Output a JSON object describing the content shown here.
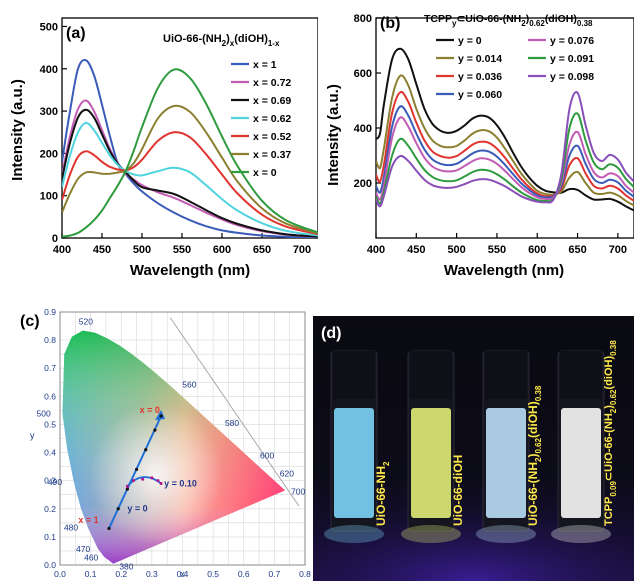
{
  "chart_data": [
    {
      "type": "line",
      "panel_label": "(a)",
      "title": "UiO-66-(NH",
      "title_sub1": "2",
      "title_mid": ")",
      "title_sub2": "x",
      "title_end": "(diOH)",
      "title_sub3": "1-x",
      "xlabel": "Wavelength (nm)",
      "ylabel": "Intensity (a.u.)",
      "xlim": [
        400,
        720
      ],
      "ylim": [
        0,
        520
      ],
      "xticks": [
        "400",
        "450",
        "500",
        "550",
        "600",
        "650",
        "700"
      ],
      "yticks": [
        "0",
        "100",
        "200",
        "300",
        "400",
        "500"
      ],
      "legend_position": "top-right",
      "series": [
        {
          "name": "x = 1",
          "color": "#3a5bb8",
          "x": [
            400,
            410,
            420,
            430,
            440,
            450,
            460,
            470,
            480,
            490,
            500,
            520,
            540,
            560,
            580,
            600,
            620,
            650,
            680,
            720
          ],
          "y": [
            180,
            300,
            400,
            420,
            385,
            315,
            240,
            175,
            150,
            128,
            110,
            82,
            60,
            42,
            28,
            18,
            12,
            6,
            3,
            1
          ]
        },
        {
          "name": "x = 0.72",
          "color": "#c25bb4",
          "x": [
            400,
            410,
            420,
            430,
            440,
            450,
            460,
            470,
            480,
            490,
            500,
            520,
            540,
            560,
            580,
            600,
            620,
            650,
            680,
            720
          ],
          "y": [
            150,
            240,
            305,
            325,
            300,
            255,
            210,
            175,
            152,
            138,
            125,
            108,
            95,
            78,
            60,
            44,
            30,
            16,
            8,
            3
          ]
        },
        {
          "name": "x = 0.69",
          "color": "#111111",
          "x": [
            400,
            410,
            420,
            430,
            440,
            450,
            460,
            470,
            480,
            490,
            500,
            520,
            540,
            560,
            580,
            600,
            620,
            650,
            680,
            720
          ],
          "y": [
            140,
            225,
            285,
            303,
            285,
            245,
            205,
            175,
            155,
            135,
            120,
            112,
            104,
            86,
            66,
            47,
            33,
            18,
            9,
            3
          ]
        },
        {
          "name": "x = 0.62",
          "color": "#4fd3df",
          "x": [
            400,
            410,
            420,
            430,
            440,
            450,
            460,
            470,
            480,
            490,
            500,
            520,
            540,
            560,
            580,
            600,
            620,
            650,
            680,
            720
          ],
          "y": [
            120,
            195,
            250,
            272,
            255,
            225,
            195,
            172,
            158,
            150,
            148,
            158,
            166,
            155,
            125,
            92,
            64,
            35,
            17,
            6
          ]
        },
        {
          "name": "x = 0.52",
          "color": "#e0342e",
          "x": [
            400,
            410,
            420,
            430,
            440,
            450,
            460,
            470,
            480,
            490,
            500,
            520,
            540,
            560,
            580,
            600,
            620,
            650,
            680,
            720
          ],
          "y": [
            90,
            150,
            192,
            205,
            196,
            180,
            168,
            162,
            160,
            168,
            185,
            230,
            250,
            238,
            198,
            150,
            104,
            55,
            27,
            9
          ]
        },
        {
          "name": "x = 0.37",
          "color": "#8b8030",
          "x": [
            400,
            410,
            420,
            430,
            440,
            450,
            460,
            470,
            480,
            490,
            500,
            520,
            540,
            560,
            580,
            600,
            620,
            650,
            680,
            720
          ],
          "y": [
            60,
            105,
            140,
            155,
            155,
            152,
            152,
            155,
            160,
            178,
            210,
            283,
            312,
            298,
            250,
            190,
            132,
            70,
            34,
            11
          ]
        },
        {
          "name": "x = 0",
          "color": "#2e9b3e",
          "x": [
            400,
            410,
            420,
            430,
            440,
            450,
            460,
            470,
            480,
            490,
            500,
            520,
            540,
            560,
            580,
            600,
            620,
            650,
            680,
            720
          ],
          "y": [
            3,
            6,
            12,
            25,
            42,
            65,
            95,
            125,
            160,
            208,
            262,
            355,
            398,
            378,
            318,
            240,
            168,
            88,
            42,
            13
          ]
        }
      ]
    },
    {
      "type": "line",
      "panel_label": "(b)",
      "title": "TCPP",
      "title_sub1": "y",
      "title_mid": "⊂UiO-66-(NH",
      "title_sub2": "2",
      "title_end": ")",
      "title_sub3": "0.62",
      "title_end2": "(diOH)",
      "title_sub4": "0.38",
      "xlabel": "Wavelength (nm)",
      "ylabel": "Intensity (a.u.)",
      "xlim": [
        400,
        720
      ],
      "ylim": [
        0,
        800
      ],
      "xticks": [
        "400",
        "450",
        "500",
        "550",
        "600",
        "650",
        "700"
      ],
      "yticks": [
        "200",
        "400",
        "600",
        "800"
      ],
      "legend_position": "top",
      "series": [
        {
          "name": "y = 0",
          "color": "#111111",
          "x": [
            400,
            405,
            410,
            420,
            430,
            440,
            450,
            460,
            470,
            480,
            490,
            500,
            510,
            520,
            530,
            540,
            550,
            560,
            570,
            580,
            590,
            600,
            610,
            620,
            630,
            640,
            650,
            660,
            670,
            680,
            690,
            700,
            710,
            720
          ],
          "y": [
            360,
            380,
            490,
            650,
            688,
            650,
            560,
            470,
            415,
            390,
            382,
            390,
            410,
            435,
            445,
            438,
            410,
            365,
            310,
            260,
            220,
            190,
            172,
            166,
            165,
            178,
            175,
            155,
            140,
            140,
            142,
            132,
            115,
            100
          ]
        },
        {
          "name": "y = 0.014",
          "color": "#8b8030",
          "x": [
            400,
            405,
            410,
            420,
            430,
            440,
            450,
            460,
            470,
            480,
            490,
            500,
            510,
            520,
            530,
            540,
            550,
            560,
            570,
            580,
            590,
            600,
            610,
            620,
            630,
            640,
            650,
            660,
            670,
            680,
            690,
            700,
            710,
            720
          ],
          "y": [
            280,
            255,
            330,
            510,
            590,
            555,
            470,
            400,
            355,
            335,
            330,
            335,
            355,
            380,
            392,
            388,
            365,
            325,
            280,
            235,
            200,
            172,
            160,
            158,
            170,
            220,
            240,
            200,
            165,
            160,
            165,
            155,
            135,
            118
          ]
        },
        {
          "name": "y = 0.036",
          "color": "#e0342e",
          "x": [
            400,
            405,
            410,
            420,
            430,
            440,
            450,
            460,
            470,
            480,
            490,
            500,
            510,
            520,
            530,
            540,
            550,
            560,
            570,
            580,
            590,
            600,
            610,
            620,
            630,
            640,
            650,
            660,
            670,
            680,
            690,
            700,
            710,
            720
          ],
          "y": [
            230,
            205,
            270,
            455,
            530,
            495,
            420,
            355,
            315,
            298,
            292,
            298,
            318,
            340,
            350,
            346,
            325,
            292,
            252,
            215,
            185,
            162,
            152,
            155,
            180,
            265,
            290,
            235,
            190,
            180,
            190,
            180,
            155,
            135
          ]
        },
        {
          "name": "y = 0.060",
          "color": "#3a5bb8",
          "x": [
            400,
            405,
            410,
            420,
            430,
            440,
            450,
            460,
            470,
            480,
            490,
            500,
            510,
            520,
            530,
            540,
            550,
            560,
            570,
            580,
            590,
            600,
            610,
            620,
            630,
            640,
            650,
            660,
            670,
            680,
            690,
            700,
            710,
            720
          ],
          "y": [
            190,
            165,
            225,
            405,
            478,
            445,
            380,
            322,
            286,
            270,
            265,
            270,
            288,
            308,
            318,
            314,
            296,
            266,
            232,
            200,
            175,
            155,
            148,
            152,
            190,
            300,
            335,
            270,
            215,
            200,
            212,
            202,
            172,
            150
          ]
        },
        {
          "name": "y = 0.076",
          "color": "#c25bb4",
          "x": [
            400,
            405,
            410,
            420,
            430,
            440,
            450,
            460,
            470,
            480,
            490,
            500,
            510,
            520,
            530,
            540,
            550,
            560,
            570,
            580,
            590,
            600,
            610,
            620,
            630,
            640,
            650,
            660,
            670,
            680,
            690,
            700,
            710,
            720
          ],
          "y": [
            165,
            140,
            195,
            365,
            438,
            405,
            345,
            292,
            260,
            246,
            242,
            246,
            262,
            280,
            290,
            286,
            270,
            244,
            214,
            186,
            164,
            148,
            142,
            148,
            200,
            340,
            385,
            305,
            240,
            220,
            235,
            225,
            190,
            165
          ]
        },
        {
          "name": "y = 0.091",
          "color": "#2e9b3e",
          "x": [
            400,
            405,
            410,
            420,
            430,
            440,
            450,
            460,
            470,
            480,
            490,
            500,
            510,
            520,
            530,
            540,
            550,
            560,
            570,
            580,
            590,
            600,
            610,
            620,
            630,
            640,
            650,
            660,
            670,
            680,
            690,
            700,
            710,
            720
          ],
          "y": [
            150,
            125,
            170,
            300,
            360,
            335,
            290,
            248,
            222,
            210,
            206,
            210,
            224,
            240,
            248,
            245,
            232,
            212,
            188,
            166,
            150,
            138,
            135,
            142,
            215,
            400,
            452,
            355,
            275,
            250,
            268,
            255,
            215,
            185
          ]
        },
        {
          "name": "y = 0.098",
          "color": "#8a4fb8",
          "x": [
            400,
            405,
            410,
            420,
            430,
            440,
            450,
            460,
            470,
            480,
            490,
            500,
            510,
            520,
            530,
            540,
            550,
            560,
            570,
            580,
            590,
            600,
            610,
            620,
            630,
            640,
            650,
            660,
            670,
            680,
            690,
            700,
            710,
            720
          ],
          "y": [
            140,
            115,
            155,
            260,
            298,
            280,
            245,
            212,
            192,
            184,
            182,
            186,
            196,
            208,
            214,
            212,
            202,
            188,
            170,
            152,
            140,
            132,
            130,
            140,
            235,
            470,
            528,
            410,
            310,
            280,
            302,
            285,
            238,
            205
          ]
        }
      ]
    },
    {
      "type": "scatter",
      "panel_label": "(c)",
      "xlabel": "x",
      "ylabel": "y",
      "xlim": [
        0.0,
        0.8
      ],
      "ylim": [
        0.0,
        0.9
      ],
      "xticks": [
        "0.0",
        "0.1",
        "0.2",
        "0.3",
        "0.4",
        "0.5",
        "0.6",
        "0.7",
        "0.8"
      ],
      "yticks": [
        "0.0",
        "0.1",
        "0.2",
        "0.3",
        "0.4",
        "0.5",
        "0.6",
        "0.7",
        "0.8",
        "0.9"
      ],
      "grid": true,
      "locus_labels": [
        {
          "text": "380",
          "x": 0.1741,
          "y": 0.005
        },
        {
          "text": "460",
          "x": 0.144,
          "y": 0.0297
        },
        {
          "text": "470",
          "x": 0.1241,
          "y": 0.0578
        },
        {
          "text": "480",
          "x": 0.0913,
          "y": 0.1327
        },
        {
          "text": "490",
          "x": 0.0454,
          "y": 0.295
        },
        {
          "text": "500",
          "x": 0.0082,
          "y": 0.5384
        },
        {
          "text": "520",
          "x": 0.0743,
          "y": 0.8338
        },
        {
          "text": "560",
          "x": 0.3731,
          "y": 0.6245
        },
        {
          "text": "580",
          "x": 0.5125,
          "y": 0.4866
        },
        {
          "text": "600",
          "x": 0.627,
          "y": 0.3725
        },
        {
          "text": "620",
          "x": 0.6915,
          "y": 0.3083
        },
        {
          "text": "700",
          "x": 0.7347,
          "y": 0.2653
        }
      ],
      "points_x_series": {
        "name": "x",
        "x": [
          0.16,
          0.19,
          0.22,
          0.25,
          0.28,
          0.31,
          0.33
        ],
        "y": [
          0.13,
          0.2,
          0.27,
          0.34,
          0.41,
          0.48,
          0.53
        ]
      },
      "points_y_series": {
        "name": "y",
        "x": [
          0.22,
          0.24,
          0.27,
          0.3,
          0.32,
          0.33
        ],
        "y": [
          0.28,
          0.3,
          0.305,
          0.31,
          0.3,
          0.29
        ]
      },
      "annotations": [
        {
          "text": "x = 1",
          "x": 0.06,
          "y": 0.15,
          "color": "#e0342e"
        },
        {
          "text": "x = 0",
          "x": 0.26,
          "y": 0.54,
          "color": "#e0342e"
        },
        {
          "text": "y = 0.10",
          "x": 0.34,
          "y": 0.28,
          "color": "#1e3a8a"
        },
        {
          "text": "y = 0",
          "x": 0.22,
          "y": 0.19,
          "color": "#1e3a8a"
        }
      ]
    }
  ],
  "photo": {
    "panel_label": "(d)",
    "vials": [
      {
        "label": "UiO-66-NH",
        "sub1": "2",
        "rest": "",
        "glow": "#7fd9ff"
      },
      {
        "label": "UiO-66-diOH",
        "sub1": "",
        "rest": "",
        "glow": "#e6f27a"
      },
      {
        "label": "UiO-66-(NH",
        "sub1": "2",
        "rest": ")",
        "sub2": "0.62",
        "rest2": "(diOH)",
        "sub3": "0.38",
        "glow": "#bfe4ff"
      },
      {
        "label": "TCPP",
        "sub1": "0.09",
        "rest": "⊂UiO-66-(NH",
        "sub2": "2",
        "rest2": ")",
        "sub3": "0.62",
        "rest3": "(diOH)",
        "sub4": "0.38",
        "glow": "#ffffff"
      }
    ]
  }
}
